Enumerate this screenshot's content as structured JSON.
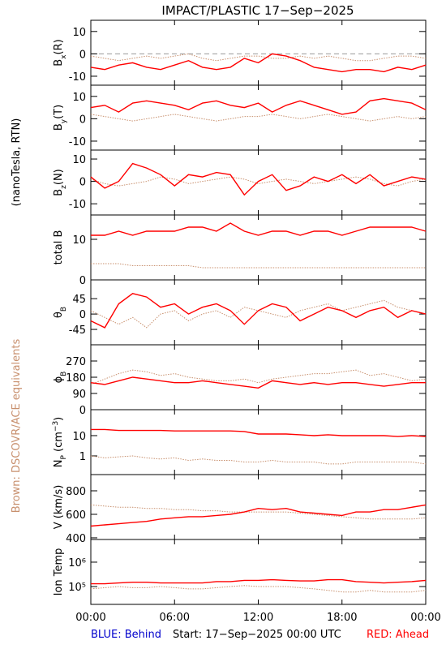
{
  "title": "IMPACT/PLASTIC   17−Sep−2025",
  "left_labels": [
    "(nanoTesla, RTN)",
    "Brown: DSCOVR/ACE equivalents"
  ],
  "footer": {
    "behind": "BLUE: Behind",
    "start": "Start: 17−Sep−2025 00:00 UTC",
    "ahead": "RED: Ahead"
  },
  "chart_data": [
    {
      "type": "line",
      "ylabel": [
        "B",
        "x",
        "(R)"
      ],
      "ylabel_shift": [
        "",
        "sub",
        ""
      ],
      "ylim": [
        -14,
        15
      ],
      "yticks": [
        10,
        0,
        -10
      ],
      "zero_line": 0,
      "xlim": [
        0,
        24
      ],
      "x": [
        0,
        1,
        2,
        3,
        4,
        5,
        6,
        7,
        8,
        9,
        10,
        11,
        12,
        13,
        14,
        15,
        16,
        17,
        18,
        19,
        20,
        21,
        22,
        23,
        24
      ],
      "series": [
        {
          "color": "#c8906e",
          "values": [
            -1,
            -2,
            -3,
            -2,
            -1,
            -2,
            -1,
            0,
            -2,
            -3,
            -2,
            -1,
            -1,
            -2,
            -2,
            -1,
            -2,
            -1,
            -2,
            -3,
            -3,
            -2,
            -1,
            -1,
            -2
          ]
        },
        {
          "color": "#ff0000",
          "values": [
            -6,
            -7,
            -5,
            -4,
            -6,
            -7,
            -5,
            -3,
            -6,
            -7,
            -6,
            -2,
            -4,
            0,
            -1,
            -3,
            -6,
            -7,
            -8,
            -7,
            -7,
            -8,
            -6,
            -7,
            -5
          ]
        }
      ]
    },
    {
      "type": "line",
      "ylabel": [
        "B",
        "y",
        "(T)"
      ],
      "ylabel_shift": [
        "",
        "sub",
        ""
      ],
      "ylim": [
        -14,
        15
      ],
      "yticks": [
        10,
        0,
        -10
      ],
      "xlim": [
        0,
        24
      ],
      "x": [
        0,
        1,
        2,
        3,
        4,
        5,
        6,
        7,
        8,
        9,
        10,
        11,
        12,
        13,
        14,
        15,
        16,
        17,
        18,
        19,
        20,
        21,
        22,
        23,
        24
      ],
      "series": [
        {
          "color": "#c8906e",
          "values": [
            2,
            1,
            0,
            -1,
            0,
            1,
            2,
            1,
            0,
            -1,
            0,
            1,
            1,
            2,
            1,
            0,
            1,
            2,
            1,
            0,
            -1,
            0,
            1,
            0,
            1
          ]
        },
        {
          "color": "#ff0000",
          "values": [
            5,
            6,
            3,
            7,
            8,
            7,
            6,
            4,
            7,
            8,
            6,
            5,
            7,
            3,
            6,
            8,
            6,
            4,
            2,
            3,
            8,
            9,
            8,
            7,
            4
          ]
        }
      ]
    },
    {
      "type": "line",
      "ylabel": [
        "B",
        "z",
        "(N)"
      ],
      "ylabel_shift": [
        "",
        "sub",
        ""
      ],
      "ylim": [
        -15,
        14
      ],
      "yticks": [
        10,
        0,
        -10
      ],
      "xlim": [
        0,
        24
      ],
      "x": [
        0,
        1,
        2,
        3,
        4,
        5,
        6,
        7,
        8,
        9,
        10,
        11,
        12,
        13,
        14,
        15,
        16,
        17,
        18,
        19,
        20,
        21,
        22,
        23,
        24
      ],
      "series": [
        {
          "color": "#c8906e",
          "values": [
            1,
            -1,
            -2,
            -1,
            0,
            2,
            1,
            -1,
            0,
            1,
            2,
            1,
            -1,
            0,
            1,
            0,
            -1,
            0,
            1,
            2,
            1,
            -1,
            -2,
            0,
            1
          ]
        },
        {
          "color": "#ff0000",
          "values": [
            2,
            -3,
            0,
            8,
            6,
            3,
            -2,
            3,
            2,
            4,
            3,
            -6,
            0,
            3,
            -4,
            -2,
            2,
            0,
            3,
            -1,
            3,
            -2,
            0,
            2,
            1
          ]
        }
      ]
    },
    {
      "type": "line",
      "ylabel": [
        "total B"
      ],
      "ylabel_shift": [
        ""
      ],
      "ylim": [
        0,
        16
      ],
      "yticks": [
        10,
        0
      ],
      "xlim": [
        0,
        24
      ],
      "x": [
        0,
        1,
        2,
        3,
        4,
        5,
        6,
        7,
        8,
        9,
        10,
        11,
        12,
        13,
        14,
        15,
        16,
        17,
        18,
        19,
        20,
        21,
        22,
        23,
        24
      ],
      "series": [
        {
          "color": "#c8906e",
          "values": [
            4,
            4,
            4,
            3.5,
            3.5,
            3.5,
            3.5,
            3.5,
            3,
            3,
            3,
            3,
            3,
            3,
            3,
            3,
            3,
            3,
            3,
            3,
            3,
            3,
            3,
            3,
            3
          ]
        },
        {
          "color": "#ff0000",
          "values": [
            11,
            11,
            12,
            11,
            12,
            12,
            12,
            13,
            13,
            12,
            14,
            12,
            11,
            12,
            12,
            11,
            12,
            12,
            11,
            12,
            13,
            13,
            13,
            13,
            12
          ]
        }
      ]
    },
    {
      "type": "line",
      "ylabel": [
        "θ",
        "B"
      ],
      "ylabel_shift": [
        "",
        "sub"
      ],
      "ylim": [
        -90,
        100
      ],
      "yticks": [
        45,
        0,
        -45
      ],
      "xlim": [
        0,
        24
      ],
      "x": [
        0,
        1,
        2,
        3,
        4,
        5,
        6,
        7,
        8,
        9,
        10,
        11,
        12,
        13,
        14,
        15,
        16,
        17,
        18,
        19,
        20,
        21,
        22,
        23,
        24
      ],
      "series": [
        {
          "color": "#c8906e",
          "values": [
            10,
            -10,
            -30,
            -10,
            -40,
            0,
            10,
            -20,
            0,
            10,
            -10,
            20,
            10,
            0,
            -10,
            10,
            20,
            30,
            10,
            20,
            30,
            40,
            20,
            10,
            0
          ]
        },
        {
          "color": "#ff0000",
          "values": [
            -20,
            -40,
            30,
            60,
            50,
            20,
            30,
            0,
            20,
            30,
            10,
            -30,
            10,
            30,
            20,
            -20,
            0,
            20,
            10,
            -10,
            10,
            20,
            -10,
            10,
            0
          ]
        }
      ]
    },
    {
      "type": "line",
      "ylabel": [
        "ϕ",
        "B"
      ],
      "ylabel_shift": [
        "",
        "sub"
      ],
      "ylim": [
        0,
        360
      ],
      "yticks": [
        270,
        180,
        90,
        0
      ],
      "xlim": [
        0,
        24
      ],
      "x": [
        0,
        1,
        2,
        3,
        4,
        5,
        6,
        7,
        8,
        9,
        10,
        11,
        12,
        13,
        14,
        15,
        16,
        17,
        18,
        19,
        20,
        21,
        22,
        23,
        24
      ],
      "series": [
        {
          "color": "#c8906e",
          "values": [
            140,
            170,
            200,
            220,
            210,
            190,
            200,
            180,
            170,
            160,
            160,
            170,
            150,
            170,
            180,
            190,
            200,
            200,
            210,
            220,
            190,
            200,
            180,
            160,
            170
          ]
        },
        {
          "color": "#ff0000",
          "values": [
            150,
            140,
            160,
            180,
            170,
            160,
            150,
            150,
            160,
            150,
            140,
            130,
            120,
            160,
            150,
            140,
            150,
            140,
            150,
            150,
            140,
            130,
            140,
            150,
            150
          ]
        }
      ]
    },
    {
      "type": "line",
      "ylabel": [
        "N",
        "P",
        " (cm",
        "−3",
        ")"
      ],
      "ylabel_shift": [
        "",
        "sub",
        "",
        "sup",
        ""
      ],
      "log": true,
      "ylim": [
        0.12,
        190
      ],
      "yticks": [
        10,
        1
      ],
      "xlim": [
        0,
        24
      ],
      "x": [
        0,
        1,
        2,
        3,
        4,
        5,
        6,
        7,
        8,
        9,
        10,
        11,
        12,
        13,
        14,
        15,
        16,
        17,
        18,
        19,
        20,
        21,
        22,
        23,
        24
      ],
      "series": [
        {
          "color": "#c8906e",
          "values": [
            1,
            0.8,
            0.9,
            1,
            0.8,
            0.7,
            0.8,
            0.6,
            0.7,
            0.6,
            0.6,
            0.5,
            0.5,
            0.6,
            0.5,
            0.5,
            0.5,
            0.4,
            0.4,
            0.5,
            0.5,
            0.5,
            0.5,
            0.5,
            0.4
          ]
        },
        {
          "color": "#ff0000",
          "values": [
            20,
            20,
            18,
            18,
            18,
            18,
            17,
            17,
            17,
            17,
            17,
            16,
            12,
            12,
            12,
            11,
            10,
            11,
            10,
            10,
            10,
            10,
            9,
            10,
            9
          ]
        }
      ]
    },
    {
      "type": "line",
      "ylabel": [
        "V (km/s)"
      ],
      "ylabel_shift": [
        ""
      ],
      "ylim": [
        386,
        938
      ],
      "yticks": [
        800,
        600,
        400
      ],
      "xlim": [
        0,
        24
      ],
      "x": [
        0,
        1,
        2,
        3,
        4,
        5,
        6,
        7,
        8,
        9,
        10,
        11,
        12,
        13,
        14,
        15,
        16,
        17,
        18,
        19,
        20,
        21,
        22,
        23,
        24
      ],
      "series": [
        {
          "color": "#c8906e",
          "values": [
            680,
            670,
            660,
            660,
            650,
            650,
            640,
            640,
            630,
            630,
            620,
            620,
            620,
            620,
            620,
            610,
            600,
            590,
            580,
            570,
            560,
            560,
            560,
            560,
            570
          ]
        },
        {
          "color": "#ff0000",
          "values": [
            500,
            510,
            520,
            530,
            540,
            560,
            570,
            580,
            580,
            590,
            600,
            620,
            650,
            640,
            650,
            620,
            610,
            600,
            590,
            620,
            620,
            640,
            640,
            660,
            680
          ]
        }
      ]
    },
    {
      "type": "line",
      "ylabel": [
        "Ion Temp"
      ],
      "ylabel_shift": [
        ""
      ],
      "log": true,
      "ylim": [
        18600,
        8500000
      ],
      "yticks": [
        {
          "value": 1000000,
          "label": "10⁶"
        },
        {
          "value": 100000,
          "label": "10⁵"
        }
      ],
      "xlim": [
        0,
        24
      ],
      "xticks": [
        {
          "value": 0,
          "label": "00:00"
        },
        {
          "value": 6,
          "label": "06:00"
        },
        {
          "value": 12,
          "label": "12:00"
        },
        {
          "value": 18,
          "label": "18:00"
        },
        {
          "value": 24,
          "label": "00:00"
        }
      ],
      "x": [
        0,
        1,
        2,
        3,
        4,
        5,
        6,
        7,
        8,
        9,
        10,
        11,
        12,
        13,
        14,
        15,
        16,
        17,
        18,
        19,
        20,
        21,
        22,
        23,
        24
      ],
      "series": [
        {
          "color": "#c8906e",
          "values": [
            80000,
            90000,
            100000,
            90000,
            90000,
            100000,
            90000,
            80000,
            80000,
            90000,
            100000,
            110000,
            100000,
            100000,
            100000,
            90000,
            80000,
            70000,
            60000,
            60000,
            70000,
            60000,
            60000,
            60000,
            70000
          ]
        },
        {
          "color": "#ff0000",
          "values": [
            130000,
            130000,
            140000,
            150000,
            150000,
            140000,
            140000,
            140000,
            140000,
            160000,
            160000,
            180000,
            180000,
            190000,
            180000,
            170000,
            170000,
            190000,
            190000,
            160000,
            150000,
            140000,
            150000,
            160000,
            180000
          ]
        }
      ]
    }
  ]
}
